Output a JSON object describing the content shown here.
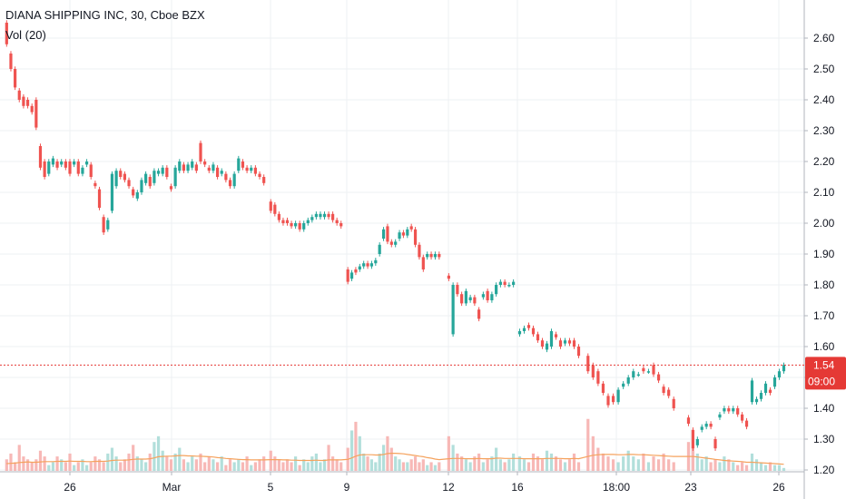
{
  "header": {
    "title": "DIANA SHIPPING INC, 30, Cboe BZX",
    "volume_label": "Vol (20)"
  },
  "price_badge": {
    "price": "1.54",
    "countdown": "09:00"
  },
  "colors": {
    "up": "#26a69a",
    "down": "#ef5350",
    "up_volume": "#b2dfdb",
    "down_volume": "#f7b8b6",
    "volume_ma": "#f5a25d",
    "grid": "#edf0f3",
    "axis_text": "#131722",
    "price_line": "#e53935"
  },
  "chart_data": {
    "type": "candlestick",
    "title": "DIANA SHIPPING INC, 30, Cboe BZX",
    "y_axis": {
      "ticks": [
        "2.60",
        "2.50",
        "2.40",
        "2.30",
        "2.20",
        "2.10",
        "2.00",
        "1.90",
        "1.80",
        "1.70",
        "1.60",
        "1.50",
        "1.40",
        "1.30",
        "1.20"
      ],
      "range": [
        1.19,
        2.64
      ],
      "side": "right"
    },
    "x_axis": {
      "ticks": [
        "26",
        "Mar",
        "5",
        "9",
        "12",
        "16",
        "18:00",
        "23",
        "26"
      ]
    },
    "last_price": 1.54,
    "candles": [
      [
        2.65,
        2.58
      ],
      [
        2.55,
        2.5
      ],
      [
        2.5,
        2.44
      ],
      [
        2.43,
        2.4
      ],
      [
        2.41,
        2.38
      ],
      [
        2.4,
        2.38
      ],
      [
        2.38,
        2.36
      ],
      [
        2.4,
        2.31
      ],
      [
        2.25,
        2.18
      ],
      [
        2.2,
        2.15
      ],
      [
        2.16,
        2.2
      ],
      [
        2.19,
        2.21
      ],
      [
        2.2,
        2.18
      ],
      [
        2.19,
        2.2
      ],
      [
        2.2,
        2.18
      ],
      [
        2.2,
        2.16
      ],
      [
        2.19,
        2.2
      ],
      [
        2.2,
        2.16
      ],
      [
        2.16,
        2.18
      ],
      [
        2.19,
        2.2
      ],
      [
        2.19,
        2.15
      ],
      [
        2.13,
        2.12
      ],
      [
        2.11,
        2.05
      ],
      [
        2.02,
        1.97
      ],
      [
        1.98,
        2.01
      ],
      [
        2.04,
        2.16
      ],
      [
        2.12,
        2.17
      ],
      [
        2.17,
        2.15
      ],
      [
        2.16,
        2.14
      ],
      [
        2.14,
        2.12
      ],
      [
        2.11,
        2.09
      ],
      [
        2.08,
        2.1
      ],
      [
        2.1,
        2.14
      ],
      [
        2.13,
        2.16
      ],
      [
        2.15,
        2.12
      ],
      [
        2.13,
        2.17
      ],
      [
        2.16,
        2.17
      ],
      [
        2.16,
        2.18
      ],
      [
        2.18,
        2.15
      ],
      [
        2.12,
        2.11
      ],
      [
        2.12,
        2.18
      ],
      [
        2.17,
        2.2
      ],
      [
        2.19,
        2.17
      ],
      [
        2.17,
        2.19
      ],
      [
        2.18,
        2.2
      ],
      [
        2.19,
        2.17
      ],
      [
        2.26,
        2.2
      ],
      [
        2.2,
        2.19
      ],
      [
        2.18,
        2.17
      ],
      [
        2.17,
        2.19
      ],
      [
        2.18,
        2.15
      ],
      [
        2.16,
        2.17
      ],
      [
        2.16,
        2.14
      ],
      [
        2.14,
        2.12
      ],
      [
        2.12,
        2.16
      ],
      [
        2.17,
        2.21
      ],
      [
        2.2,
        2.18
      ],
      [
        2.18,
        2.17
      ],
      [
        2.17,
        2.18
      ],
      [
        2.18,
        2.16
      ],
      [
        2.16,
        2.15
      ],
      [
        2.15,
        2.13
      ],
      [
        2.07,
        2.04
      ],
      [
        2.06,
        2.03
      ],
      [
        2.03,
        2.01
      ],
      [
        2.01,
        2.0
      ],
      [
        2.01,
        2.0
      ],
      [
        2.0,
        1.99
      ],
      [
        1.99,
        2.0
      ],
      [
        2.0,
        1.98
      ],
      [
        1.98,
        2.0
      ],
      [
        2.0,
        2.01
      ],
      [
        2.01,
        2.02
      ],
      [
        2.02,
        2.03
      ],
      [
        2.02,
        2.03
      ],
      [
        2.02,
        2.03
      ],
      [
        2.03,
        2.02
      ],
      [
        2.03,
        2.01
      ],
      [
        2.01,
        2.0
      ],
      [
        2.0,
        1.99
      ],
      [
        1.85,
        1.81
      ],
      [
        1.82,
        1.84
      ],
      [
        1.85,
        1.84
      ],
      [
        1.85,
        1.86
      ],
      [
        1.86,
        1.87
      ],
      [
        1.87,
        1.86
      ],
      [
        1.86,
        1.87
      ],
      [
        1.87,
        1.88
      ],
      [
        1.9,
        1.93
      ],
      [
        1.95,
        1.98
      ],
      [
        1.99,
        1.94
      ],
      [
        1.94,
        1.93
      ],
      [
        1.93,
        1.94
      ],
      [
        1.95,
        1.97
      ],
      [
        1.97,
        1.96
      ],
      [
        1.96,
        1.98
      ],
      [
        1.99,
        1.98
      ],
      [
        1.98,
        1.93
      ],
      [
        1.93,
        1.89
      ],
      [
        1.89,
        1.85
      ],
      [
        1.89,
        1.9
      ],
      [
        1.9,
        1.89
      ],
      [
        1.89,
        1.9
      ],
      [
        1.9,
        1.89
      ],
      [
        1.83,
        1.82
      ],
      [
        1.64,
        1.8
      ],
      [
        1.8,
        1.77
      ],
      [
        1.77,
        1.74
      ],
      [
        1.74,
        1.78
      ],
      [
        1.75,
        1.76
      ],
      [
        1.76,
        1.74
      ],
      [
        1.72,
        1.69
      ],
      [
        1.76,
        1.77
      ],
      [
        1.78,
        1.75
      ],
      [
        1.75,
        1.77
      ],
      [
        1.77,
        1.8
      ],
      [
        1.8,
        1.81
      ],
      [
        1.81,
        1.8
      ],
      [
        1.8,
        1.8
      ],
      [
        1.8,
        1.81
      ],
      [
        1.64,
        1.65
      ],
      [
        1.65,
        1.66
      ],
      [
        1.67,
        1.66
      ],
      [
        1.66,
        1.64
      ],
      [
        1.64,
        1.62
      ],
      [
        1.62,
        1.6
      ],
      [
        1.59,
        1.61
      ],
      [
        1.6,
        1.65
      ],
      [
        1.64,
        1.63
      ],
      [
        1.62,
        1.6
      ],
      [
        1.61,
        1.62
      ],
      [
        1.62,
        1.61
      ],
      [
        1.62,
        1.6
      ],
      [
        1.6,
        1.57
      ],
      [
        1.57,
        1.52
      ],
      [
        1.54,
        1.5
      ],
      [
        1.52,
        1.48
      ],
      [
        1.48,
        1.45
      ],
      [
        1.44,
        1.41
      ],
      [
        1.44,
        1.42
      ],
      [
        1.42,
        1.46
      ],
      [
        1.47,
        1.48
      ],
      [
        1.48,
        1.5
      ],
      [
        1.5,
        1.52
      ],
      [
        1.51,
        1.51
      ],
      [
        1.53,
        1.52
      ],
      [
        1.52,
        1.52
      ],
      [
        1.54,
        1.51
      ],
      [
        1.51,
        1.49
      ],
      [
        1.47,
        1.45
      ],
      [
        1.46,
        1.44
      ],
      [
        1.43,
        1.4
      ],
      [
        1.37,
        1.35
      ],
      [
        1.33,
        1.27
      ],
      [
        1.28,
        1.3
      ],
      [
        1.33,
        1.34
      ],
      [
        1.34,
        1.35
      ],
      [
        1.35,
        1.34
      ],
      [
        1.3,
        1.27
      ],
      [
        1.37,
        1.38
      ],
      [
        1.39,
        1.4
      ],
      [
        1.4,
        1.39
      ],
      [
        1.39,
        1.4
      ],
      [
        1.4,
        1.38
      ],
      [
        1.38,
        1.36
      ],
      [
        1.36,
        1.34
      ],
      [
        1.42,
        1.49
      ],
      [
        1.42,
        1.43
      ],
      [
        1.43,
        1.45
      ],
      [
        1.45,
        1.48
      ],
      [
        1.46,
        1.45
      ],
      [
        1.47,
        1.5
      ],
      [
        1.5,
        1.52
      ],
      [
        1.52,
        1.54
      ]
    ],
    "volume": [
      4,
      6,
      3,
      9,
      5,
      4,
      3,
      4,
      7,
      5,
      2,
      3,
      5,
      4,
      3,
      6,
      2,
      3,
      4,
      2,
      3,
      5,
      4,
      3,
      6,
      8,
      5,
      3,
      4,
      6,
      9,
      5,
      4,
      3,
      6,
      10,
      12,
      7,
      5,
      4,
      6,
      8,
      4,
      3,
      5,
      4,
      6,
      3,
      5,
      4,
      3,
      5,
      2,
      4,
      3,
      4,
      3,
      5,
      2,
      3,
      4,
      5,
      7,
      5,
      4,
      3,
      4,
      3,
      5,
      2,
      4,
      3,
      5,
      6,
      3,
      4,
      9,
      5,
      4,
      3,
      8,
      14,
      17,
      12,
      6,
      5,
      4,
      3,
      6,
      9,
      12,
      8,
      5,
      4,
      3,
      3,
      4,
      5,
      3,
      4,
      2,
      3,
      2,
      3,
      12,
      9,
      6,
      5,
      4,
      3,
      5,
      6,
      3,
      4,
      5,
      8,
      4,
      3,
      4,
      6,
      5,
      4,
      3,
      6,
      5,
      4,
      7,
      6,
      5,
      4,
      3,
      4,
      6,
      3,
      18,
      12,
      8,
      6,
      5,
      4,
      3,
      5,
      7,
      5,
      4,
      6,
      3,
      5,
      4,
      6,
      4,
      3,
      10,
      8,
      6,
      4,
      5,
      3,
      4,
      3,
      5,
      4,
      3,
      2,
      3,
      2,
      6,
      4,
      3,
      2,
      3,
      2,
      2,
      1
    ],
    "volume_ma": [
      2.5,
      2.6,
      2.7,
      2.9,
      3.0,
      3.1,
      3.0,
      3.0,
      3.1,
      3.2,
      3.2,
      3.2,
      3.3,
      3.3,
      3.3,
      3.4,
      3.3,
      3.3,
      3.3,
      3.2,
      3.2,
      3.3,
      3.3,
      3.3,
      3.4,
      3.6,
      3.7,
      3.7,
      3.7,
      3.8,
      4.0,
      4.1,
      4.1,
      4.1,
      4.2,
      4.5,
      4.9,
      5.0,
      5.1,
      5.1,
      5.2,
      5.3,
      5.3,
      5.2,
      5.2,
      5.1,
      5.1,
      5.0,
      4.9,
      4.8,
      4.6,
      4.5,
      4.3,
      4.2,
      4.1,
      4.0,
      3.9,
      3.9,
      3.8,
      3.8,
      3.8,
      3.8,
      3.9,
      3.9,
      3.9,
      3.8,
      3.8,
      3.7,
      3.7,
      3.6,
      3.6,
      3.6,
      3.6,
      3.7,
      3.6,
      3.6,
      3.8,
      3.8,
      3.8,
      3.8,
      4.0,
      4.5,
      5.1,
      5.5,
      5.6,
      5.6,
      5.6,
      5.5,
      5.5,
      5.7,
      6.0,
      6.1,
      6.1,
      6.0,
      5.9,
      5.7,
      5.5,
      5.3,
      5.1,
      4.9,
      4.6,
      4.4,
      4.1,
      3.9,
      4.2,
      4.3,
      4.3,
      4.3,
      4.2,
      4.2,
      4.2,
      4.3,
      4.2,
      4.2,
      4.2,
      4.4,
      4.4,
      4.3,
      4.3,
      4.3,
      4.3,
      4.2,
      4.2,
      4.2,
      4.2,
      4.2,
      4.3,
      4.3,
      4.3,
      4.3,
      4.2,
      4.2,
      4.3,
      4.2,
      5.0,
      5.4,
      5.6,
      5.7,
      5.7,
      5.7,
      5.6,
      5.6,
      5.7,
      5.7,
      5.6,
      5.6,
      5.5,
      5.4,
      5.3,
      5.2,
      5.1,
      5.0,
      5.0,
      5.0,
      4.8,
      4.6,
      4.4,
      4.2,
      4.0,
      3.8,
      3.6,
      3.5,
      3.4,
      3.3,
      3.2,
      3.0,
      3.0,
      2.9,
      2.8,
      2.7,
      2.6,
      2.5,
      2.4,
      2.3
    ]
  }
}
